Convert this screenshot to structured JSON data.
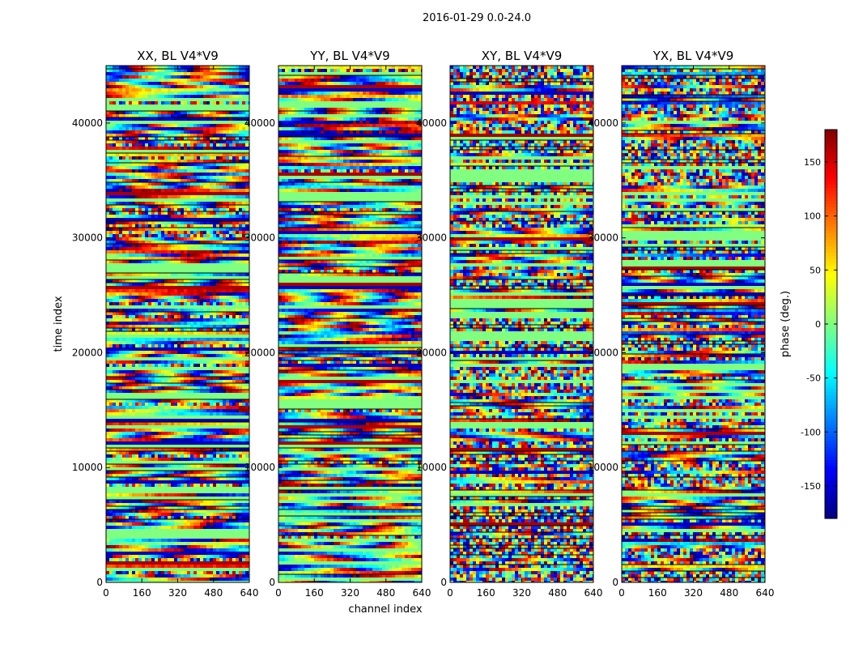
{
  "figure": {
    "suptitle": "2016-01-29 0.0-24.0"
  },
  "chart_data": {
    "type": "heatmap",
    "title": "2016-01-29 0.0-24.0",
    "xlabel": "channel index",
    "ylabel": "time index",
    "xlim": [
      0,
      640
    ],
    "ylim": [
      0,
      45000
    ],
    "xticks": [
      0,
      160,
      320,
      480,
      640
    ],
    "yticks": [
      0,
      10000,
      20000,
      30000,
      40000
    ],
    "panels": [
      {
        "name": "XX, BL V4*V9",
        "seed": 11,
        "coherent": 0.85
      },
      {
        "name": "YY, BL V4*V9",
        "seed": 23,
        "coherent": 0.9
      },
      {
        "name": "XY, BL V4*V9",
        "seed": 37,
        "coherent": 0.35
      },
      {
        "name": "YX, BL V4*V9",
        "seed": 53,
        "coherent": 0.4
      }
    ],
    "colorbar": {
      "label": "phase (deg.)",
      "colormap": "jet",
      "range": [
        -180,
        180
      ],
      "ticks": [
        150,
        100,
        50,
        0,
        -50,
        -100,
        -150
      ]
    }
  }
}
